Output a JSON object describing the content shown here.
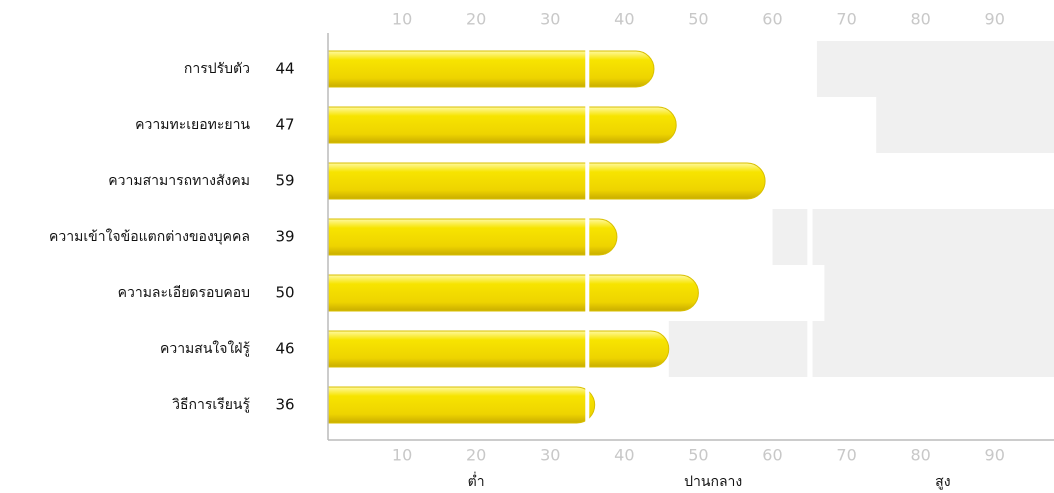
{
  "chart_data": {
    "type": "bar",
    "orientation": "horizontal",
    "categories": [
      "การปรับตัว",
      "ความทะเยอทะยาน",
      "ความสามารถทางสังคม",
      "ความเข้าใจข้อแตกต่างของบุคคล",
      "ความละเอียดรอบคอบ",
      "ความสนใจใฝ่รู้",
      "วิธีการเรียนรู้"
    ],
    "values": [
      44,
      47,
      59,
      39,
      50,
      46,
      36
    ],
    "color": "#f2dc00",
    "marker": 35,
    "background_ranges": [
      [
        [
          66,
          98
        ]
      ],
      [
        [
          74,
          98
        ]
      ],
      [],
      [
        [
          60,
          64.7
        ],
        [
          65.4,
          98
        ]
      ],
      [
        [
          67,
          98
        ]
      ],
      [
        [
          46,
          64.7
        ],
        [
          65.4,
          98
        ]
      ],
      []
    ],
    "xlim": [
      0,
      98
    ],
    "xticks": [
      10,
      20,
      30,
      40,
      50,
      60,
      70,
      80,
      90
    ],
    "zone_labels": [
      {
        "at": 20,
        "label": "ต่ำ"
      },
      {
        "at": 52,
        "label": "ปานกลาง"
      },
      {
        "at": 83,
        "label": "สูง"
      }
    ]
  }
}
